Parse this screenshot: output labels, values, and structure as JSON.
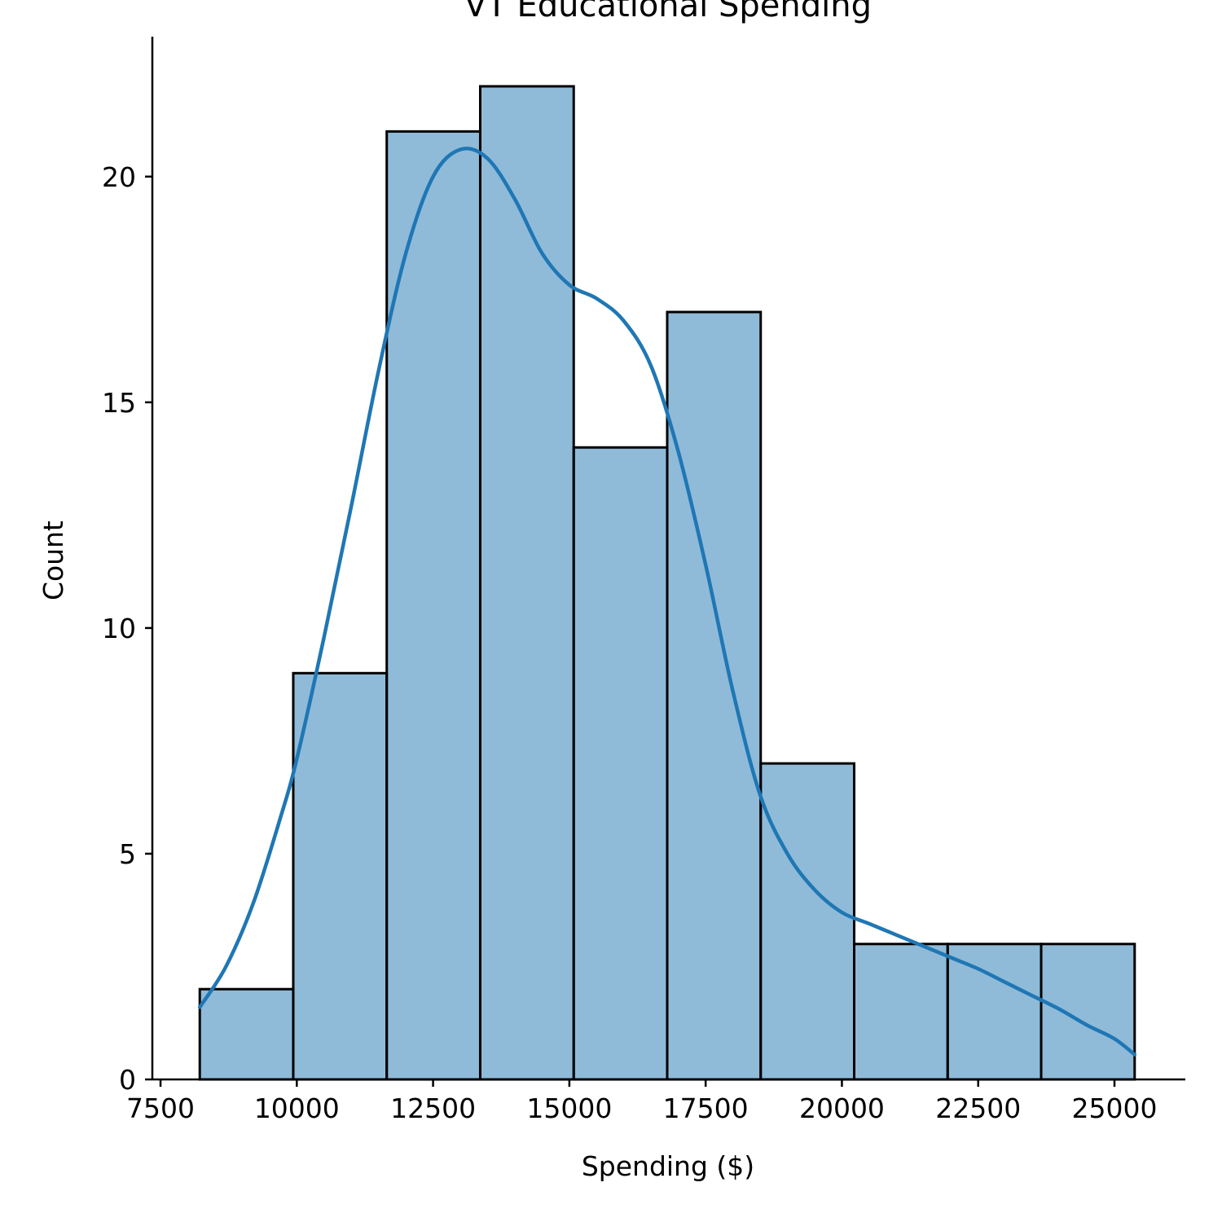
{
  "chart_data": {
    "type": "bar",
    "title": "VT Educational Spending",
    "xlabel": "Spending ($)",
    "ylabel": "Count",
    "xlim": [
      7350,
      26300
    ],
    "ylim": [
      0,
      23.1
    ],
    "x_ticks": [
      7500,
      10000,
      12500,
      15000,
      17500,
      20000,
      22500,
      25000
    ],
    "x_tick_labels": [
      "7500",
      "10000",
      "12500",
      "15000",
      "17500",
      "20000",
      "22500",
      "25000"
    ],
    "y_ticks": [
      0,
      5,
      10,
      15,
      20
    ],
    "y_tick_labels": [
      "0",
      "5",
      "10",
      "15",
      "20"
    ],
    "grid": false,
    "legend": "none",
    "bin_edges": [
      8220,
      9935,
      11650,
      13365,
      15080,
      16795,
      18510,
      20225,
      21940,
      23655,
      25370
    ],
    "series": [
      {
        "kind": "histogram",
        "values": [
          2,
          9,
          21,
          22,
          14,
          17,
          7,
          3,
          3,
          3
        ]
      },
      {
        "kind": "density",
        "x": [
          8220,
          8700,
          9200,
          9700,
          10000,
          10500,
          11000,
          11500,
          12000,
          12500,
          13000,
          13500,
          14000,
          14500,
          15000,
          15500,
          16000,
          16500,
          17000,
          17500,
          18000,
          18500,
          19000,
          19500,
          20000,
          20500,
          21000,
          21500,
          22000,
          22500,
          23000,
          23500,
          24000,
          24500,
          25000,
          25370
        ],
        "y": [
          1.6,
          2.5,
          3.9,
          5.8,
          7.1,
          9.8,
          12.7,
          15.7,
          18.3,
          20.0,
          20.6,
          20.4,
          19.5,
          18.3,
          17.6,
          17.3,
          16.8,
          15.8,
          13.9,
          11.4,
          8.6,
          6.3,
          5.0,
          4.2,
          3.7,
          3.45,
          3.2,
          2.95,
          2.7,
          2.45,
          2.15,
          1.85,
          1.55,
          1.2,
          0.9,
          0.55
        ]
      }
    ],
    "colors": {
      "bar": "#1f77b4",
      "line": "#1f77b4",
      "edge": "#000000"
    }
  }
}
